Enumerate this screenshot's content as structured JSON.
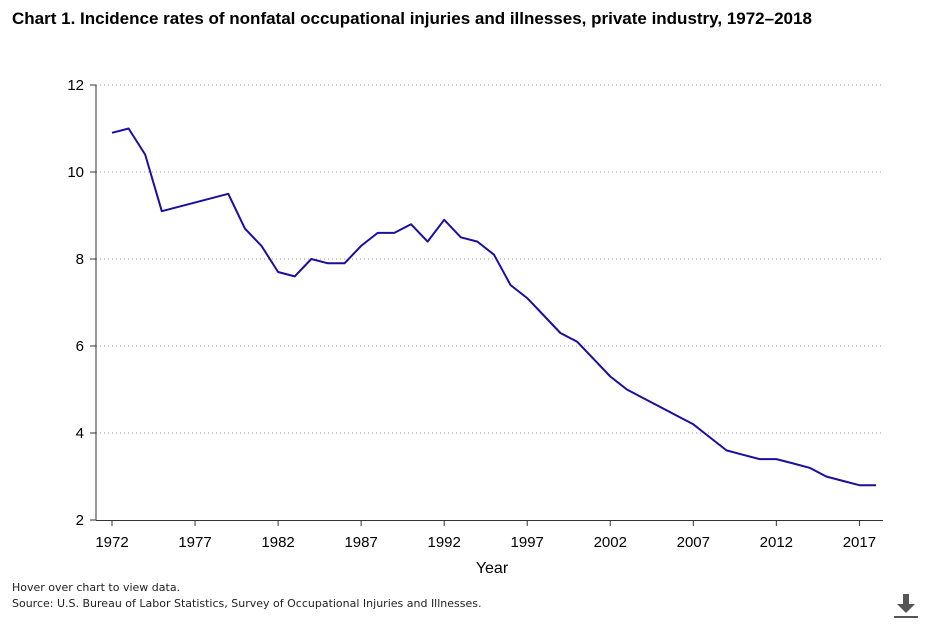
{
  "title": "Chart 1. Incidence rates of nonfatal occupational injuries and illnesses, private industry, 1972–2018",
  "footer": {
    "hover_note": "Hover over chart to view data.",
    "source": "Source: U.S. Bureau of Labor Statistics, Survey of Occupational Injuries and Illnesses."
  },
  "download_icon": "download-icon",
  "chart_data": {
    "type": "line",
    "title": "Chart 1. Incidence rates of nonfatal occupational injuries and illnesses, private industry, 1972–2018",
    "xlabel": "Year",
    "ylabel": "",
    "xlim": [
      1972,
      2018
    ],
    "ylim": [
      2,
      12
    ],
    "xticks": [
      1972,
      1977,
      1982,
      1987,
      1992,
      1997,
      2002,
      2007,
      2012,
      2017
    ],
    "yticks": [
      2,
      4,
      6,
      8,
      10,
      12
    ],
    "grid": "horizontal dotted",
    "line_color": "#1a0f9e",
    "series": [
      {
        "x": [
          1972,
          1973,
          1974,
          1975,
          1979,
          1980,
          1981,
          1982,
          1983,
          1984,
          1985,
          1986,
          1987,
          1988,
          1989,
          1990,
          1991,
          1992,
          1993,
          1994,
          1995,
          1996,
          1997,
          1998,
          1999,
          2000,
          2001,
          2002,
          2003,
          2004,
          2005,
          2006,
          2007,
          2008,
          2009,
          2010,
          2011,
          2012,
          2013,
          2014,
          2015,
          2016,
          2017,
          2018
        ],
        "values": [
          10.9,
          11.0,
          10.4,
          9.1,
          9.5,
          8.7,
          8.3,
          7.7,
          7.6,
          8.0,
          7.9,
          7.9,
          8.3,
          8.6,
          8.6,
          8.8,
          8.4,
          8.9,
          8.5,
          8.4,
          8.1,
          7.4,
          7.1,
          6.7,
          6.3,
          6.1,
          5.7,
          5.3,
          5.0,
          4.8,
          4.6,
          4.4,
          4.2,
          3.9,
          3.6,
          3.5,
          3.4,
          3.4,
          3.3,
          3.2,
          3.0,
          2.9,
          2.8,
          2.8
        ]
      }
    ]
  }
}
